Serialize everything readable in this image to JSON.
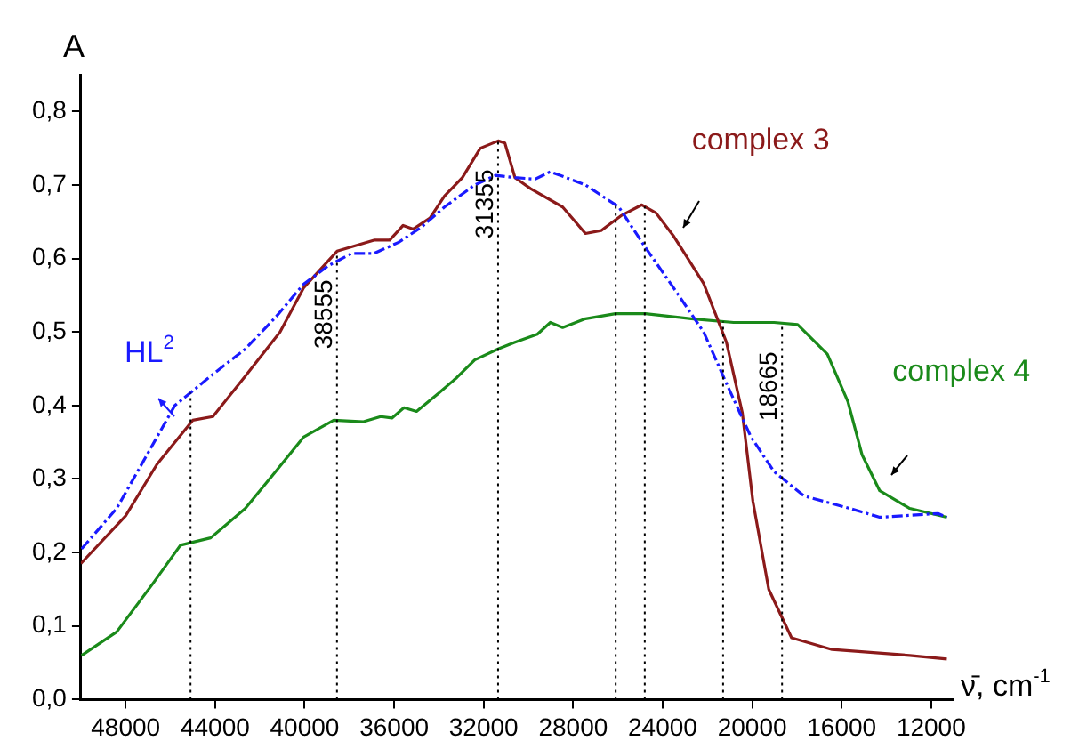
{
  "chart_data": {
    "type": "line",
    "ylabel": "A",
    "xlabel": "ν̄, cm$^{-1}$",
    "xlim": [
      50000,
      11000
    ],
    "xticks": [
      48000,
      44000,
      40000,
      36000,
      32000,
      28000,
      24000,
      20000,
      16000,
      12000
    ],
    "ylim": [
      0,
      0.85
    ],
    "yticks": [
      {
        "value": 0,
        "label": "0,0"
      },
      {
        "value": 0.1,
        "label": "0,1"
      },
      {
        "value": 0.2,
        "label": "0,2"
      },
      {
        "value": 0.3,
        "label": "0,3"
      },
      {
        "value": 0.4,
        "label": "0,4"
      },
      {
        "value": 0.5,
        "label": "0,5"
      },
      {
        "value": 0.6,
        "label": "0,6"
      },
      {
        "value": 0.7,
        "label": "0,7"
      },
      {
        "value": 0.8,
        "label": "0,8"
      }
    ],
    "grid": false,
    "legend": false,
    "marker": "none",
    "series": [
      {
        "name": "HL$^{2}$",
        "color": "#1a1aff",
        "line_style": "dashed",
        "x": [
          49970,
          48400,
          47100,
          45800,
          44200,
          42650,
          41300,
          40050,
          38950,
          37900,
          36900,
          35800,
          34770,
          33750,
          32400,
          31460,
          30600,
          29700,
          29020,
          28310,
          27450,
          25960,
          24770,
          23510,
          22170,
          21150,
          20050,
          19020,
          17690,
          15640,
          14300,
          11700,
          11300
        ],
        "values": [
          0.205,
          0.26,
          0.33,
          0.4,
          0.44,
          0.477,
          0.52,
          0.565,
          0.59,
          0.607,
          0.607,
          0.622,
          0.643,
          0.67,
          0.7,
          0.713,
          0.71,
          0.708,
          0.718,
          0.71,
          0.7,
          0.67,
          0.615,
          0.56,
          0.5,
          0.43,
          0.357,
          0.31,
          0.277,
          0.26,
          0.248,
          0.253,
          0.248
        ]
      },
      {
        "name": "complex 3",
        "color": "#8b1a1a",
        "line_style": "solid",
        "x": [
          50000,
          48000,
          46600,
          45000,
          44100,
          42650,
          41100,
          40050,
          38550,
          36900,
          36200,
          35600,
          35150,
          34400,
          33750,
          32950,
          32150,
          31350,
          31050,
          30600,
          29900,
          28470,
          27450,
          26750,
          25870,
          24930,
          24300,
          23500,
          22170,
          21150,
          20440,
          19970,
          19260,
          18240,
          16430,
          12960,
          11300
        ],
        "values": [
          0.185,
          0.25,
          0.32,
          0.38,
          0.385,
          0.44,
          0.5,
          0.56,
          0.61,
          0.625,
          0.625,
          0.645,
          0.64,
          0.655,
          0.685,
          0.71,
          0.75,
          0.76,
          0.757,
          0.71,
          0.695,
          0.67,
          0.634,
          0.638,
          0.658,
          0.673,
          0.662,
          0.63,
          0.566,
          0.486,
          0.39,
          0.27,
          0.15,
          0.084,
          0.068,
          0.06,
          0.055
        ]
      },
      {
        "name": "complex 4",
        "color": "#1a8a1a",
        "line_style": "solid",
        "x": [
          49970,
          48400,
          46800,
          45550,
          44200,
          42650,
          41300,
          40050,
          38700,
          37370,
          36600,
          36100,
          35560,
          35000,
          34000,
          33200,
          32400,
          31350,
          30600,
          29600,
          29020,
          28470,
          27450,
          26110,
          24770,
          22720,
          20830,
          19020,
          17970,
          16640,
          15720,
          15090,
          14300,
          12960,
          11300
        ],
        "values": [
          0.06,
          0.092,
          0.157,
          0.21,
          0.22,
          0.26,
          0.31,
          0.357,
          0.38,
          0.378,
          0.385,
          0.383,
          0.397,
          0.392,
          0.417,
          0.438,
          0.462,
          0.477,
          0.486,
          0.497,
          0.513,
          0.506,
          0.518,
          0.525,
          0.525,
          0.518,
          0.513,
          0.513,
          0.51,
          0.47,
          0.405,
          0.333,
          0.284,
          0.26,
          0.248
        ]
      }
    ],
    "ref_lines": [
      {
        "axis": "x",
        "value": 45100,
        "label": null,
        "color": "#000000",
        "line_style": "dotted"
      },
      {
        "axis": "x",
        "value": 38555,
        "label": "38555",
        "color": "#000000",
        "line_style": "dotted"
      },
      {
        "axis": "x",
        "value": 31355,
        "label": "31355",
        "color": "#000000",
        "line_style": "dotted"
      },
      {
        "axis": "x",
        "value": 26100,
        "label": null,
        "color": "#000000",
        "line_style": "dotted"
      },
      {
        "axis": "x",
        "value": 24800,
        "label": null,
        "color": "#000000",
        "line_style": "dotted"
      },
      {
        "axis": "x",
        "value": 21300,
        "label": null,
        "color": "#000000",
        "line_style": "dotted"
      },
      {
        "axis": "x",
        "value": 18665,
        "label": "18665",
        "color": "#000000",
        "line_style": "dotted"
      }
    ]
  }
}
